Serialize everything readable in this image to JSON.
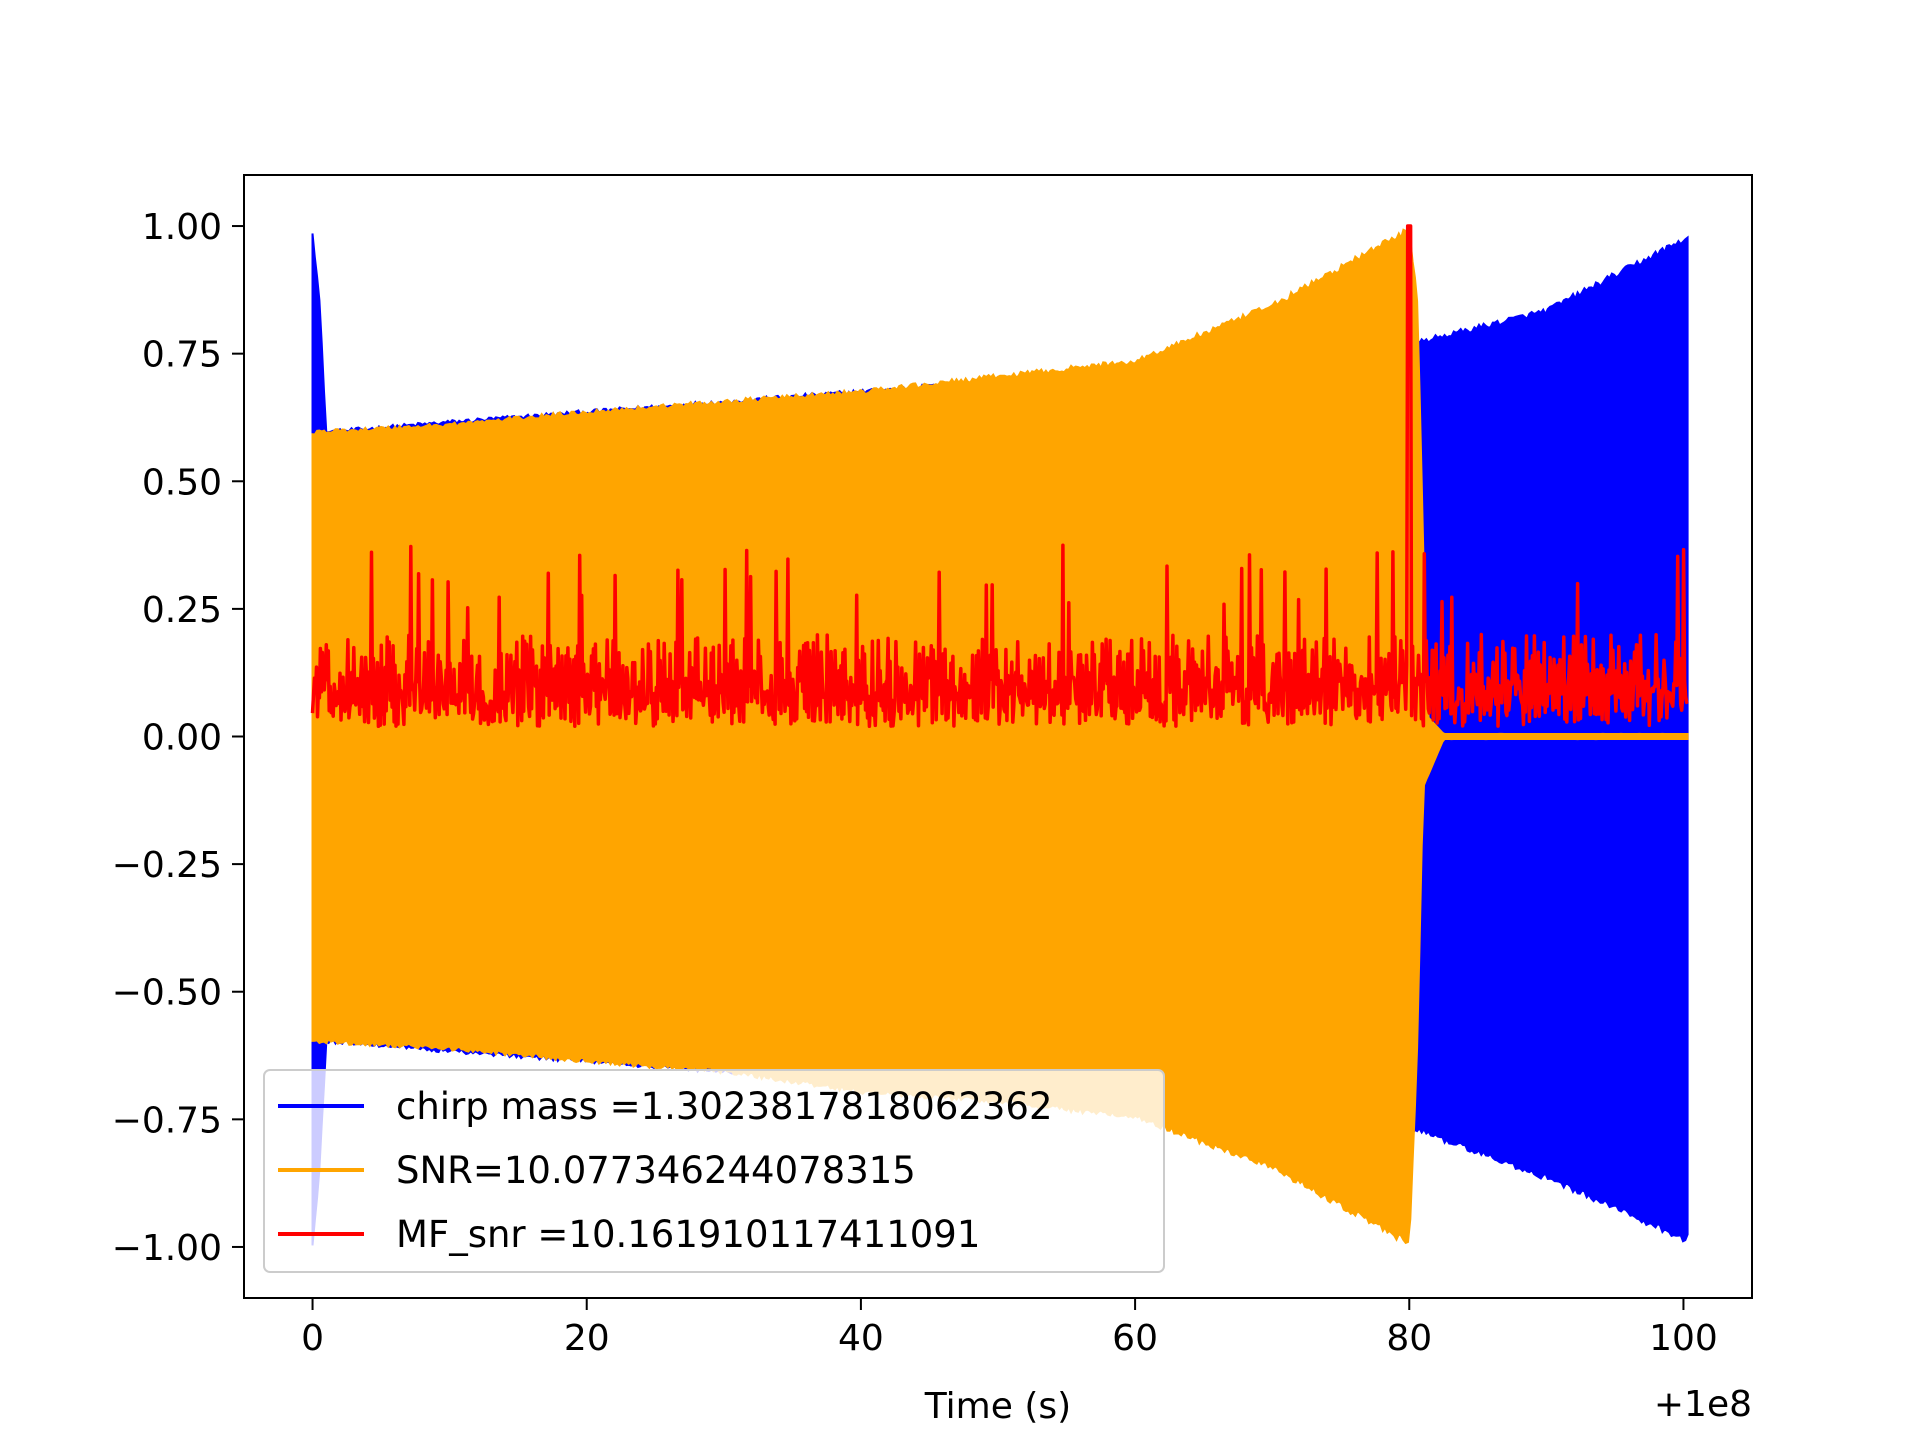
{
  "chart_data": {
    "type": "line",
    "title": "",
    "xlabel": "Time (s)",
    "ylabel": "",
    "x_offset_label": "+1e8",
    "xlim": [
      -5,
      105
    ],
    "ylim": [
      -1.1,
      1.1
    ],
    "x_ticks": [
      0,
      20,
      40,
      60,
      80,
      100
    ],
    "x_tick_labels": [
      "0",
      "20",
      "40",
      "60",
      "80",
      "100"
    ],
    "y_ticks": [
      1.0,
      0.75,
      0.5,
      0.25,
      0.0,
      -0.25,
      -0.5,
      -0.75,
      -1.0
    ],
    "y_tick_labels": [
      "1.00",
      "0.75",
      "0.50",
      "0.25",
      "0.00",
      "−0.25",
      "−0.50",
      "−0.75",
      "−1.00"
    ],
    "grid": false,
    "legend_position": "lower-left",
    "series": [
      {
        "name": "chirp mass =1.3023817818062362",
        "color": "#0000ff",
        "kind": "oscillating-envelope",
        "x_range": [
          0,
          100.3
        ],
        "upper_envelope": [
          [
            0,
            1.0
          ],
          [
            0.5,
            0.86
          ],
          [
            1.0,
            0.6
          ],
          [
            10,
            0.62
          ],
          [
            30,
            0.66
          ],
          [
            50,
            0.7
          ],
          [
            60,
            0.72
          ],
          [
            70,
            0.75
          ],
          [
            81,
            0.78
          ],
          [
            90,
            0.84
          ],
          [
            100,
            0.98
          ]
        ],
        "lower_envelope": [
          [
            0,
            -1.0
          ],
          [
            0.5,
            -0.86
          ],
          [
            1.0,
            -0.6
          ],
          [
            10,
            -0.62
          ],
          [
            30,
            -0.66
          ],
          [
            50,
            -0.7
          ],
          [
            56,
            -0.66
          ],
          [
            57,
            -0.66
          ],
          [
            70,
            -0.75
          ],
          [
            81,
            -0.78
          ],
          [
            90,
            -0.87
          ],
          [
            100,
            -0.99
          ]
        ]
      },
      {
        "name": "SNR=10.077346244078315",
        "color": "#ffa500",
        "kind": "oscillating-envelope",
        "x_range": [
          0,
          100.3
        ],
        "upper_envelope": [
          [
            0,
            0.6
          ],
          [
            10,
            0.615
          ],
          [
            20,
            0.64
          ],
          [
            30,
            0.66
          ],
          [
            40,
            0.68
          ],
          [
            50,
            0.71
          ],
          [
            60,
            0.74
          ],
          [
            70,
            0.85
          ],
          [
            80,
            1.0
          ],
          [
            80.6,
            0.86
          ],
          [
            81.3,
            0.04
          ],
          [
            82.5,
            0.005
          ],
          [
            100,
            0.005
          ]
        ],
        "lower_envelope": [
          [
            0,
            -0.6
          ],
          [
            10,
            -0.615
          ],
          [
            20,
            -0.64
          ],
          [
            30,
            -0.66
          ],
          [
            40,
            -0.7
          ],
          [
            50,
            -0.72
          ],
          [
            60,
            -0.75
          ],
          [
            70,
            -0.85
          ],
          [
            80,
            -1.0
          ],
          [
            80.6,
            -0.6
          ],
          [
            81.0,
            -0.1
          ],
          [
            82.5,
            -0.005
          ],
          [
            100,
            -0.005
          ]
        ]
      },
      {
        "name": "MF_snr =10.161910117411091",
        "color": "#ff0000",
        "kind": "noise",
        "x_range": [
          0,
          100.3
        ],
        "baseline": 0.12,
        "spread": [
          0.02,
          0.25
        ],
        "peak": {
          "x": 80.0,
          "y": 1.0
        }
      }
    ]
  }
}
